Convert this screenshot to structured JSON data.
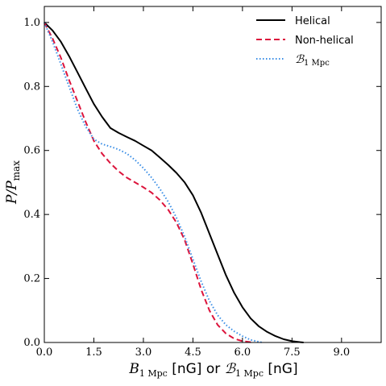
{
  "chart_data": {
    "type": "line",
    "xlabel": "B_1 Mpc [nG] or ℬ_1 Mpc [nG]",
    "ylabel": "P/P_max",
    "xlabel_parts": [
      "B",
      "1 Mpc",
      " [nG] or ",
      "ℬ",
      "1 Mpc",
      " [nG]"
    ],
    "ylabel_parts": [
      "P/P",
      "max"
    ],
    "xlim": [
      0,
      10.2
    ],
    "ylim": [
      0,
      1.05
    ],
    "xticks": [
      0.0,
      1.5,
      3.0,
      4.5,
      6.0,
      7.5,
      9.0
    ],
    "xtick_labels": [
      "0.0",
      "1.5",
      "3.0",
      "4.5",
      "6.0",
      "7.5",
      "9.0"
    ],
    "yticks": [
      0.0,
      0.2,
      0.4,
      0.6,
      0.8,
      1.0
    ],
    "ytick_labels": [
      "0.0",
      "0.2",
      "0.4",
      "0.6",
      "0.8",
      "1.0"
    ],
    "grid": false,
    "legend_position": "top-right",
    "series": [
      {
        "name": "Helical",
        "color": "#000000",
        "style": "solid",
        "x": [
          0.0,
          0.25,
          0.5,
          0.75,
          1.0,
          1.25,
          1.5,
          1.75,
          2.0,
          2.25,
          2.5,
          2.75,
          3.0,
          3.25,
          3.5,
          3.75,
          4.0,
          4.25,
          4.5,
          4.75,
          5.0,
          5.25,
          5.5,
          5.75,
          6.0,
          6.25,
          6.5,
          6.75,
          7.0,
          7.25,
          7.5,
          7.75,
          7.85
        ],
        "y": [
          1.0,
          0.975,
          0.94,
          0.895,
          0.845,
          0.795,
          0.745,
          0.705,
          0.67,
          0.655,
          0.642,
          0.63,
          0.615,
          0.6,
          0.578,
          0.555,
          0.53,
          0.5,
          0.46,
          0.405,
          0.34,
          0.275,
          0.21,
          0.155,
          0.11,
          0.075,
          0.05,
          0.033,
          0.02,
          0.01,
          0.004,
          0.001,
          0.0
        ]
      },
      {
        "name": "Non-helical",
        "color": "#dc143c",
        "style": "dashed",
        "x": [
          0.0,
          0.25,
          0.5,
          0.75,
          1.0,
          1.25,
          1.5,
          1.75,
          2.0,
          2.25,
          2.5,
          2.75,
          3.0,
          3.25,
          3.5,
          3.75,
          4.0,
          4.25,
          4.5,
          4.75,
          5.0,
          5.25,
          5.5,
          5.75,
          6.0,
          6.25,
          6.35
        ],
        "y": [
          1.0,
          0.95,
          0.89,
          0.82,
          0.755,
          0.69,
          0.63,
          0.59,
          0.56,
          0.535,
          0.515,
          0.5,
          0.485,
          0.468,
          0.445,
          0.415,
          0.375,
          0.32,
          0.245,
          0.165,
          0.1,
          0.055,
          0.028,
          0.012,
          0.004,
          0.001,
          0.0
        ]
      },
      {
        "name": "ℬ",
        "name_sub": "1 Mpc",
        "color": "#3a8ee6",
        "style": "dotted",
        "x": [
          0.0,
          0.25,
          0.5,
          0.75,
          1.0,
          1.25,
          1.5,
          1.75,
          2.0,
          2.25,
          2.5,
          2.75,
          3.0,
          3.25,
          3.5,
          3.75,
          4.0,
          4.25,
          4.5,
          4.75,
          5.0,
          5.25,
          5.5,
          5.75,
          6.0,
          6.25,
          6.5,
          6.6
        ],
        "y": [
          1.0,
          0.94,
          0.87,
          0.8,
          0.73,
          0.675,
          0.635,
          0.62,
          0.612,
          0.603,
          0.59,
          0.57,
          0.545,
          0.515,
          0.48,
          0.44,
          0.39,
          0.33,
          0.26,
          0.19,
          0.13,
          0.085,
          0.055,
          0.035,
          0.02,
          0.008,
          0.002,
          0.0
        ]
      }
    ]
  }
}
